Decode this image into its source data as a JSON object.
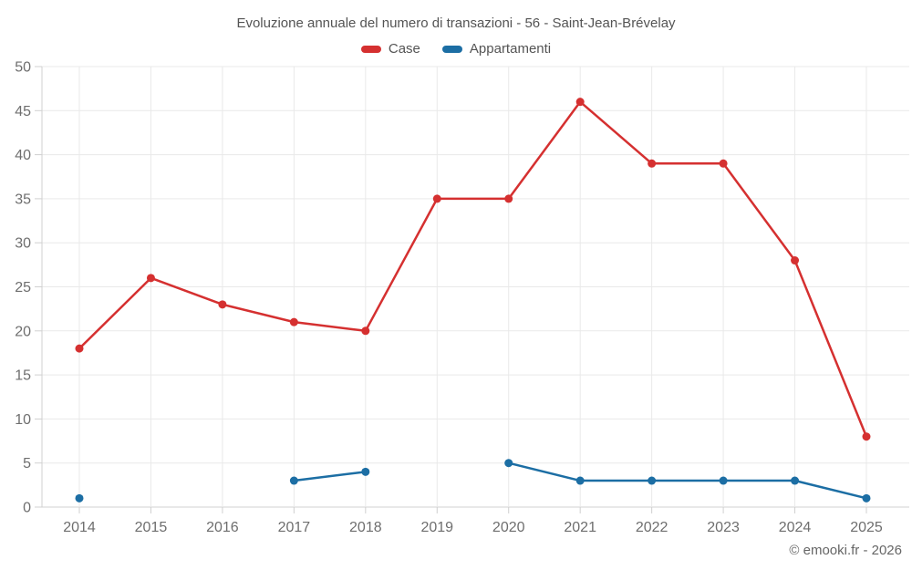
{
  "chart": {
    "title": "Evoluzione annuale del numero di transazioni - 56 - Saint-Jean-Brévelay",
    "footer": "© emooki.fr - 2026"
  },
  "colors": {
    "case_red": "#d53030",
    "appartamenti_blue": "#1c6ea4",
    "grid": "#e9e9e9",
    "axis": "#d0d0d0",
    "label_text": "#6e6e6e",
    "title_text": "#545454"
  },
  "chart_data": {
    "type": "line",
    "title": "Evoluzione annuale del numero di transazioni - 56 - Saint-Jean-Brévelay",
    "categories": [
      "2014",
      "2015",
      "2016",
      "2017",
      "2018",
      "2019",
      "2020",
      "2021",
      "2022",
      "2023",
      "2024",
      "2025"
    ],
    "series": [
      {
        "name": "Case",
        "color": "#d53030",
        "values": [
          18,
          26,
          23,
          21,
          20,
          35,
          35,
          46,
          39,
          39,
          28,
          8
        ]
      },
      {
        "name": "Appartamenti",
        "color": "#1c6ea4",
        "values": [
          1,
          null,
          null,
          3,
          4,
          null,
          5,
          3,
          3,
          3,
          3,
          1
        ]
      }
    ],
    "xlabel": "",
    "ylabel": "",
    "ylim": [
      0,
      50
    ],
    "yticks": [
      0,
      5,
      10,
      15,
      20,
      25,
      30,
      35,
      40,
      45,
      50
    ],
    "grid": true,
    "legend_position": "top",
    "annotations": []
  }
}
